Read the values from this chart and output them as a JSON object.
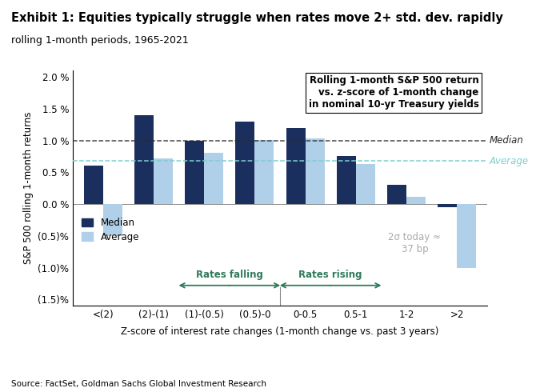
{
  "title": "Exhibit 1: Equities typically struggle when rates move 2+ std. dev. rapidly",
  "subtitle": "rolling 1-month periods, 1965-2021",
  "xlabel": "Z-score of interest rate changes (1-month change vs. past 3 years)",
  "ylabel": "S&P 500 rolling 1-month returns",
  "source": "Source: FactSet, Goldman Sachs Global Investment Research",
  "categories": [
    "<(2)",
    "(2)-(1)",
    "(1)-(0.5)",
    "(0.5)-0",
    "0-0.5",
    "0.5-1",
    "1-2",
    ">2"
  ],
  "median_values": [
    0.006,
    0.014,
    0.01,
    0.013,
    0.012,
    0.0075,
    0.003,
    -0.0005
  ],
  "average_values": [
    -0.005,
    0.0072,
    0.008,
    0.0101,
    0.0103,
    0.0063,
    0.0012,
    -0.01
  ],
  "median_color": "#1b2f5e",
  "average_color": "#b0cfe8",
  "median_line_color": "#2a2a2a",
  "average_line_color": "#7ecece",
  "median_ref": 0.01,
  "average_ref": 0.0068,
  "ylim": [
    -0.016,
    0.021
  ],
  "yticks": [
    -0.015,
    -0.01,
    -0.005,
    0.0,
    0.005,
    0.01,
    0.015,
    0.02
  ],
  "ytick_labels": [
    "(1.5)%",
    "(1.0)%",
    "(0.5)%",
    "0.0 %",
    "0.5 %",
    "1.0 %",
    "1.5 %",
    "2.0 %"
  ],
  "annotation_text": "Rolling 1-month S&P 500 return\nvs. z-score of 1-month change\nin nominal 10-yr Treasury yields",
  "annotation_sigma": "2σ today ≈\n37 bp",
  "rates_falling_label": "Rates falling",
  "rates_rising_label": "Rates rising",
  "background_color": "#ffffff",
  "plot_bg_color": "#ffffff",
  "rates_color": "#2e7a5a"
}
